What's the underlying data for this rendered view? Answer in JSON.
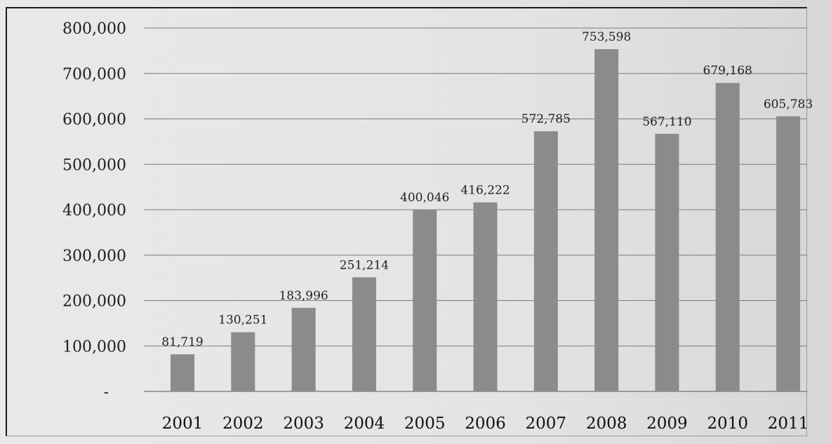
{
  "chart_data": {
    "type": "bar",
    "categories": [
      "2001",
      "2002",
      "2003",
      "2004",
      "2005",
      "2006",
      "2007",
      "2008",
      "2009",
      "2010",
      "2011"
    ],
    "values": [
      81719,
      130251,
      183996,
      251214,
      400046,
      416222,
      572785,
      753598,
      567110,
      679168,
      605783
    ],
    "data_labels": [
      "81,719",
      "130,251",
      "183,996",
      "251,214",
      "400,046",
      "416,222",
      "572,785",
      "753,598",
      "567,110",
      "679,168",
      "605,783"
    ],
    "ylim": [
      0,
      800000
    ],
    "y_ticks": [
      0,
      100000,
      200000,
      300000,
      400000,
      500000,
      600000,
      700000,
      800000
    ],
    "y_tick_labels": [
      "-",
      "100,000",
      "200,000",
      "300,000",
      "400,000",
      "500,000",
      "600,000",
      "700,000",
      "800,000"
    ],
    "grid": true,
    "legend": "none",
    "title": "",
    "xlabel": "",
    "ylabel": "",
    "colors": {
      "bar": "#8b8b8b",
      "grid": "#7a7a7a",
      "text": "#1d1d1d"
    }
  }
}
